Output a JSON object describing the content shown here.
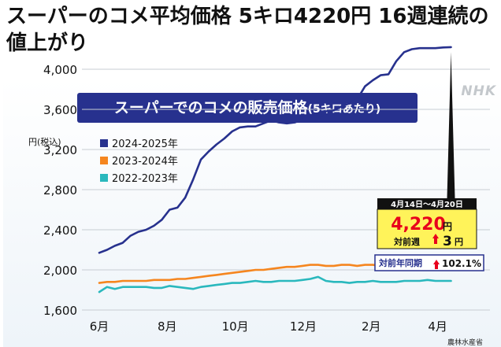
{
  "headline": "スーパーのコメ平均価格 5キロ4220円 16週連続の値上がり",
  "watermark": "NHK",
  "source": "農林水産省",
  "colors": {
    "title_bg": "#27318e",
    "series_2024": "#27318e",
    "series_2023": "#f5861f",
    "series_2022": "#2ab8bd",
    "callout_bg": "#fff35a",
    "red": "#e8001c"
  },
  "callout": {
    "period": "4月14日～4月20日",
    "price": "4,220",
    "price_unit": "円",
    "wow_label": "対前週",
    "wow_value": "3",
    "wow_unit": "円",
    "yoy_label": "対前年同期",
    "yoy_value": "102.1%"
  },
  "chart_data": {
    "type": "line",
    "title": "スーパーでのコメの販売価格",
    "subtitle": "(5キロあたり)",
    "ylabel": "円(税込)",
    "xlabel": "",
    "ylim": [
      1600,
      4300
    ],
    "yticks": [
      "1,600",
      "2,000",
      "2,400",
      "2,800",
      "3,200",
      "3,600",
      "4,000"
    ],
    "ytick_values": [
      1600,
      2000,
      2400,
      2800,
      3200,
      3600,
      4000
    ],
    "xtick_labels": [
      "6月",
      "8月",
      "10月",
      "12月",
      "2月",
      "4月"
    ],
    "xtick_weeks": [
      0,
      8.7,
      17.4,
      26.1,
      34.8,
      43.3
    ],
    "x_unit": "weeks from start of June",
    "grid": true,
    "legend": "top-left",
    "series": [
      {
        "name": "2024-2025年",
        "color": "#27318e",
        "width": 2.6,
        "x": [
          0,
          1,
          2,
          3,
          4,
          5,
          6,
          7,
          8,
          9,
          10,
          11,
          12,
          13,
          14,
          15,
          16,
          17,
          18,
          19,
          20,
          21,
          22,
          23,
          24,
          25,
          26,
          27,
          28,
          29,
          30,
          31,
          32,
          33,
          34,
          35,
          36,
          37,
          38,
          39,
          40,
          41,
          42,
          43,
          44,
          45
        ],
        "values": [
          2170,
          2200,
          2240,
          2270,
          2340,
          2380,
          2400,
          2440,
          2500,
          2600,
          2620,
          2720,
          2900,
          3100,
          3180,
          3250,
          3310,
          3380,
          3420,
          3430,
          3430,
          3460,
          3490,
          3470,
          3460,
          3470,
          3500,
          3500,
          3500,
          3580,
          3590,
          3630,
          3660,
          3700,
          3830,
          3890,
          3940,
          3950,
          4080,
          4170,
          4200,
          4210,
          4210,
          4210,
          4217,
          4220
        ]
      },
      {
        "name": "2023-2024年",
        "color": "#f5861f",
        "width": 2.6,
        "x": [
          0,
          1,
          2,
          3,
          4,
          5,
          6,
          7,
          8,
          9,
          10,
          11,
          12,
          13,
          14,
          15,
          16,
          17,
          18,
          19,
          20,
          21,
          22,
          23,
          24,
          25,
          26,
          27,
          28,
          29,
          30,
          31,
          32,
          33,
          34,
          35,
          36,
          37,
          38,
          39,
          40,
          41,
          42,
          43,
          44,
          45
        ],
        "values": [
          1870,
          1880,
          1880,
          1890,
          1890,
          1890,
          1890,
          1900,
          1900,
          1900,
          1910,
          1910,
          1920,
          1930,
          1940,
          1950,
          1960,
          1970,
          1980,
          1990,
          2000,
          2000,
          2010,
          2020,
          2030,
          2030,
          2040,
          2050,
          2050,
          2040,
          2040,
          2050,
          2050,
          2040,
          2050,
          2050,
          2040,
          2050,
          2060,
          2060,
          2070,
          2080,
          2090,
          2100,
          2100,
          2100
        ]
      },
      {
        "name": "2022-2023年",
        "color": "#2ab8bd",
        "width": 2.6,
        "x": [
          0,
          1,
          2,
          3,
          4,
          5,
          6,
          7,
          8,
          9,
          10,
          11,
          12,
          13,
          14,
          15,
          16,
          17,
          18,
          19,
          20,
          21,
          22,
          23,
          24,
          25,
          26,
          27,
          28,
          29,
          30,
          31,
          32,
          33,
          34,
          35,
          36,
          37,
          38,
          39,
          40,
          41,
          42,
          43,
          44,
          45
        ],
        "values": [
          1780,
          1830,
          1810,
          1830,
          1830,
          1830,
          1830,
          1820,
          1820,
          1840,
          1830,
          1820,
          1810,
          1830,
          1840,
          1850,
          1860,
          1870,
          1870,
          1880,
          1890,
          1880,
          1880,
          1890,
          1890,
          1890,
          1900,
          1910,
          1930,
          1890,
          1880,
          1880,
          1870,
          1880,
          1880,
          1890,
          1880,
          1880,
          1880,
          1890,
          1890,
          1890,
          1900,
          1890,
          1890,
          1890
        ]
      }
    ]
  }
}
